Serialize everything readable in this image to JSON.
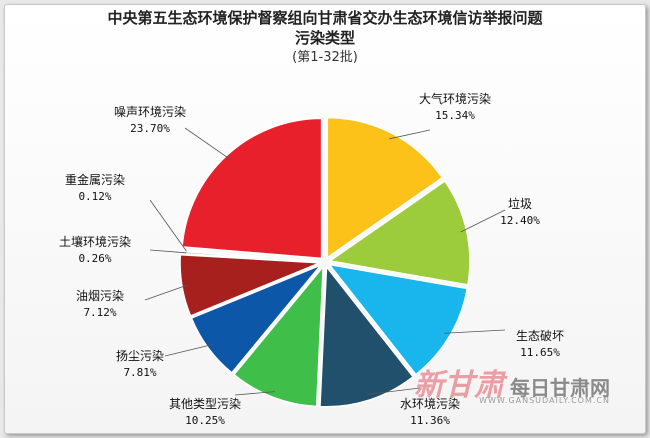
{
  "title": "中央第五生态环境保护督察组向甘肃省交办生态环境信访举报问题",
  "subtitle": "污染类型",
  "batch": "(第1-32批)",
  "watermark": {
    "brand": "新甘肃",
    "site": "每日甘肃网",
    "url": "WWW.GANSUDAILY.COM.CN"
  },
  "chart_data": {
    "type": "pie",
    "title": "中央第五生态环境保护督察组向甘肃省交办生态环境信访举报问题",
    "slices": [
      {
        "label": "大气环境污染",
        "value": 15.34,
        "value_text": "15.34%",
        "color": "#fcc21a"
      },
      {
        "label": "垃圾",
        "value": 12.4,
        "value_text": "12.40%",
        "color": "#9ccc3c"
      },
      {
        "label": "生态破坏",
        "value": 11.65,
        "value_text": "11.65%",
        "color": "#18b6ec"
      },
      {
        "label": "水环境污染",
        "value": 11.36,
        "value_text": "11.36%",
        "color": "#20506c"
      },
      {
        "label": "其他类型污染",
        "value": 10.25,
        "value_text": "10.25%",
        "color": "#3fbf4a"
      },
      {
        "label": "扬尘污染",
        "value": 7.81,
        "value_text": "7.81%",
        "color": "#0d57a8"
      },
      {
        "label": "油烟污染",
        "value": 7.12,
        "value_text": "7.12%",
        "color": "#a8201e"
      },
      {
        "label": "土壤环境污染",
        "value": 0.26,
        "value_text": "0.26%",
        "color": "#b0b0b0"
      },
      {
        "label": "重金属污染",
        "value": 0.12,
        "value_text": "0.12%",
        "color": "#6a6a6a"
      },
      {
        "label": "噪声环境污染",
        "value": 23.7,
        "value_text": "23.70%",
        "color": "#e8202c"
      }
    ],
    "legend": "none"
  }
}
